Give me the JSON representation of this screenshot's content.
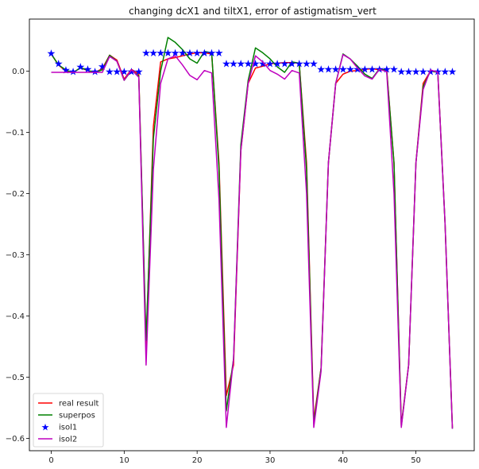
{
  "chart_data": {
    "type": "line",
    "title": "changing dcX1 and tiltX1, error of astigmatism_vert",
    "xlabel": "",
    "ylabel": "",
    "xlim": [
      -3,
      58
    ],
    "ylim": [
      -0.62,
      0.085
    ],
    "xticks": [
      0,
      10,
      20,
      30,
      40,
      50
    ],
    "yticks": [
      0.0,
      -0.1,
      -0.2,
      -0.3,
      -0.4,
      -0.5,
      -0.6
    ],
    "xtick_labels": [
      "0",
      "10",
      "20",
      "30",
      "40",
      "50"
    ],
    "ytick_labels": [
      "0.0",
      "−0.1",
      "−0.2",
      "−0.3",
      "−0.4",
      "−0.5",
      "−0.6"
    ],
    "grid": false,
    "legend_position": "lower-left",
    "series": [
      {
        "name": "real result",
        "color": "#ff0000",
        "style": "line",
        "x": [
          0,
          1,
          2,
          3,
          4,
          5,
          6,
          7,
          8,
          9,
          10,
          11,
          12,
          13,
          14,
          15,
          16,
          17,
          18,
          19,
          20,
          21,
          22,
          23,
          24,
          25,
          26,
          27,
          28,
          29,
          30,
          31,
          32,
          33,
          34,
          35,
          36,
          37,
          38,
          39,
          40,
          41,
          42,
          43,
          44,
          45,
          46,
          47,
          48,
          49,
          50,
          51,
          52,
          53,
          54,
          55
        ],
        "values": [
          0.028,
          0.01,
          0.0,
          -0.002,
          0.005,
          0.001,
          -0.002,
          0.004,
          0.026,
          0.018,
          -0.013,
          0.003,
          -0.005,
          -0.45,
          -0.09,
          0.015,
          0.02,
          0.022,
          0.025,
          0.028,
          0.03,
          0.03,
          0.028,
          -0.15,
          -0.53,
          -0.48,
          -0.13,
          -0.02,
          0.005,
          0.008,
          0.012,
          0.013,
          0.014,
          0.014,
          0.013,
          -0.15,
          -0.57,
          -0.485,
          -0.15,
          -0.02,
          -0.005,
          0.0,
          0.001,
          0.003,
          0.004,
          0.002,
          0.003,
          -0.15,
          -0.578,
          -0.48,
          -0.15,
          -0.02,
          0.0,
          0.0,
          -0.25,
          -0.582
        ]
      },
      {
        "name": "superpos",
        "color": "#008000",
        "style": "line",
        "x": [
          0,
          1,
          2,
          3,
          4,
          5,
          6,
          7,
          8,
          9,
          10,
          11,
          12,
          13,
          14,
          15,
          16,
          17,
          18,
          19,
          20,
          21,
          22,
          23,
          24,
          25,
          26,
          27,
          28,
          29,
          30,
          31,
          32,
          33,
          34,
          35,
          36,
          37,
          38,
          39,
          40,
          41,
          42,
          43,
          44,
          45,
          46,
          47,
          48,
          49,
          50,
          51,
          52,
          53,
          54,
          55
        ],
        "values": [
          0.028,
          0.01,
          0.002,
          -0.003,
          0.006,
          0.001,
          -0.002,
          0.002,
          0.026,
          0.016,
          -0.015,
          0.001,
          -0.008,
          -0.44,
          -0.11,
          0.0,
          0.055,
          0.047,
          0.035,
          0.02,
          0.013,
          0.032,
          0.03,
          -0.16,
          -0.555,
          -0.47,
          -0.12,
          -0.015,
          0.038,
          0.03,
          0.02,
          0.007,
          -0.002,
          0.015,
          0.013,
          -0.16,
          -0.576,
          -0.485,
          -0.15,
          -0.02,
          0.028,
          0.02,
          0.008,
          -0.005,
          -0.012,
          0.004,
          0.001,
          -0.15,
          -0.58,
          -0.48,
          -0.15,
          -0.025,
          0.0,
          -0.002,
          -0.25,
          -0.584
        ]
      },
      {
        "name": "isol1",
        "color": "#0000ff",
        "style": "marker",
        "x": [
          0,
          1,
          2,
          3,
          4,
          5,
          6,
          7,
          8,
          9,
          10,
          11,
          12,
          13,
          14,
          15,
          16,
          17,
          18,
          19,
          20,
          21,
          22,
          23,
          24,
          25,
          26,
          27,
          28,
          29,
          30,
          31,
          32,
          33,
          34,
          35,
          36,
          37,
          38,
          39,
          40,
          41,
          42,
          43,
          44,
          45,
          46,
          47,
          48,
          49,
          50,
          51,
          52,
          53,
          54,
          55
        ],
        "values": [
          0.029,
          0.012,
          0.002,
          -0.001,
          0.007,
          0.003,
          -0.001,
          0.008,
          -0.001,
          -0.001,
          -0.001,
          -0.001,
          -0.001,
          0.03,
          0.03,
          0.03,
          0.03,
          0.03,
          0.03,
          0.03,
          0.03,
          0.03,
          0.03,
          0.03,
          0.012,
          0.012,
          0.012,
          0.012,
          0.012,
          0.012,
          0.012,
          0.012,
          0.012,
          0.012,
          0.012,
          0.012,
          0.012,
          0.003,
          0.003,
          0.003,
          0.003,
          0.003,
          0.003,
          0.003,
          0.003,
          0.003,
          0.003,
          0.003,
          -0.001,
          -0.001,
          -0.001,
          -0.001,
          -0.001,
          -0.001,
          -0.001,
          -0.001
        ]
      },
      {
        "name": "isol2",
        "color": "#bf00bf",
        "style": "line",
        "x": [
          0,
          1,
          2,
          3,
          4,
          5,
          6,
          7,
          8,
          9,
          10,
          11,
          12,
          13,
          14,
          15,
          16,
          17,
          18,
          19,
          20,
          21,
          22,
          23,
          24,
          25,
          26,
          27,
          28,
          29,
          30,
          31,
          32,
          33,
          34,
          35,
          36,
          37,
          38,
          39,
          40,
          41,
          42,
          43,
          44,
          45,
          46,
          47,
          48,
          49,
          50,
          51,
          52,
          53,
          54,
          55
        ],
        "values": [
          -0.002,
          -0.002,
          -0.002,
          -0.002,
          -0.002,
          -0.002,
          -0.002,
          -0.002,
          0.024,
          0.016,
          -0.015,
          0.002,
          -0.01,
          -0.48,
          -0.16,
          -0.02,
          0.02,
          0.025,
          0.01,
          -0.007,
          -0.014,
          0.001,
          -0.003,
          -0.21,
          -0.582,
          -0.47,
          -0.13,
          -0.02,
          0.025,
          0.015,
          0.001,
          -0.005,
          -0.013,
          0.001,
          -0.003,
          -0.2,
          -0.582,
          -0.49,
          -0.15,
          -0.02,
          0.027,
          0.02,
          0.005,
          -0.008,
          -0.013,
          0.003,
          -0.001,
          -0.2,
          -0.582,
          -0.48,
          -0.15,
          -0.03,
          0.002,
          -0.002,
          -0.25,
          -0.584
        ]
      }
    ]
  }
}
